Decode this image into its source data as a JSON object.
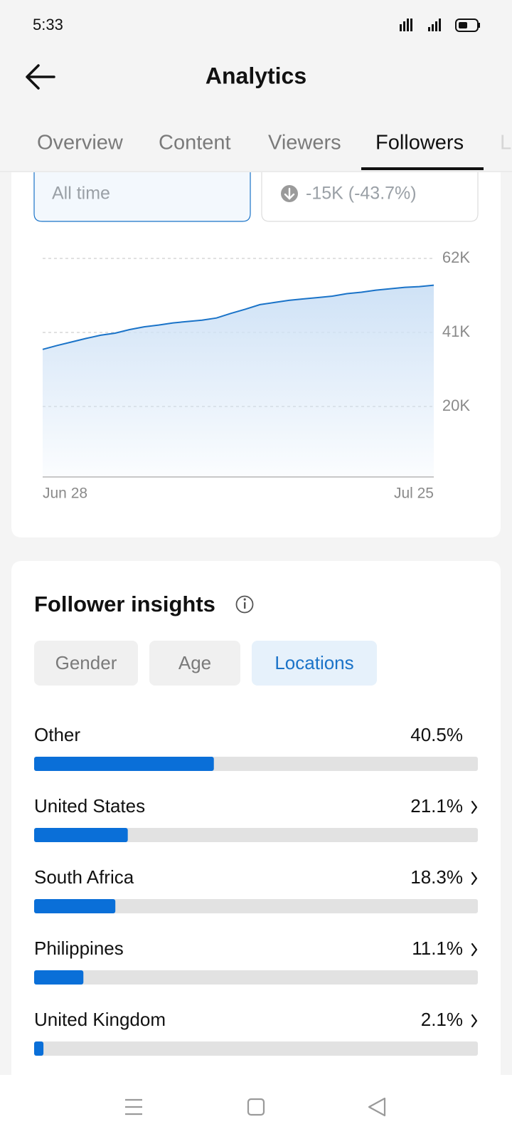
{
  "status_bar": {
    "time": "5:33"
  },
  "header": {
    "title": "Analytics"
  },
  "tabs": [
    "Overview",
    "Content",
    "Viewers",
    "Followers",
    "L"
  ],
  "filters": {
    "period": "All time",
    "change": "-15K (-43.7%)"
  },
  "insights": {
    "title": "Follower insights",
    "tabs": [
      "Gender",
      "Age",
      "Locations"
    ]
  },
  "chart_data": [
    {
      "type": "area",
      "categories": [
        "Jun 28",
        null,
        null,
        null,
        null,
        null,
        null,
        null,
        null,
        null,
        null,
        null,
        null,
        null,
        null,
        null,
        null,
        null,
        null,
        null,
        null,
        null,
        null,
        null,
        null,
        null,
        null,
        "Jul 25"
      ],
      "values": [
        36200,
        37300,
        38300,
        39300,
        40200,
        40800,
        41800,
        42600,
        43100,
        43700,
        44100,
        44500,
        45100,
        46400,
        47600,
        48900,
        49500,
        50100,
        50500,
        50900,
        51300,
        52000,
        52400,
        53000,
        53400,
        53800,
        54000,
        54400
      ],
      "color": "#1a73c8",
      "ylim": [
        0,
        62000
      ],
      "yticks": [
        {
          "value": 20000,
          "label": "20K"
        },
        {
          "value": 41000,
          "label": "41K"
        },
        {
          "value": 62000,
          "label": "62K"
        }
      ],
      "grid": true
    },
    {
      "type": "hbar",
      "categories": [
        "Other",
        "United States",
        "South Africa",
        "Philippines",
        "United Kingdom"
      ],
      "values": [
        40.5,
        21.1,
        18.3,
        11.1,
        2.1
      ],
      "value_labels": [
        "40.5%",
        "21.1%",
        "18.3%",
        "11.1%",
        "2.1%"
      ],
      "color": "#0a6fd8",
      "xlim": [
        0,
        100
      ]
    }
  ]
}
